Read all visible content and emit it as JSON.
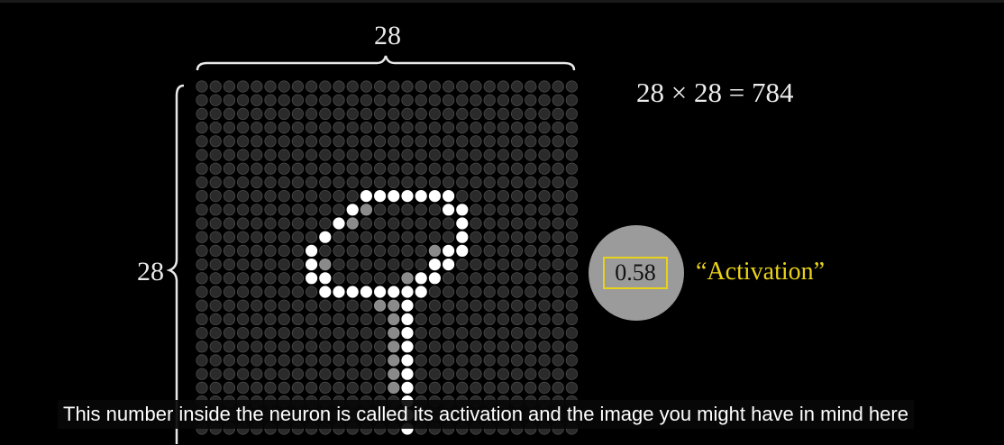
{
  "top_dimension": "28",
  "left_dimension": "28",
  "equation": "28 × 28 = 784",
  "neuron": {
    "value": "0.58",
    "label": "“Activation”"
  },
  "caption": "This number inside the neuron is called its activation and the image you might have in mind here",
  "colors": {
    "background": "#000000",
    "text": "#e9e9e9",
    "highlight": "#e8d21a",
    "neuron_fill": "#9b9b9b",
    "pixel_dark": "#2a2a2a",
    "pixel_bright": "#ffffff"
  },
  "grid": {
    "rows": 28,
    "cols": 28,
    "digit": "9"
  }
}
